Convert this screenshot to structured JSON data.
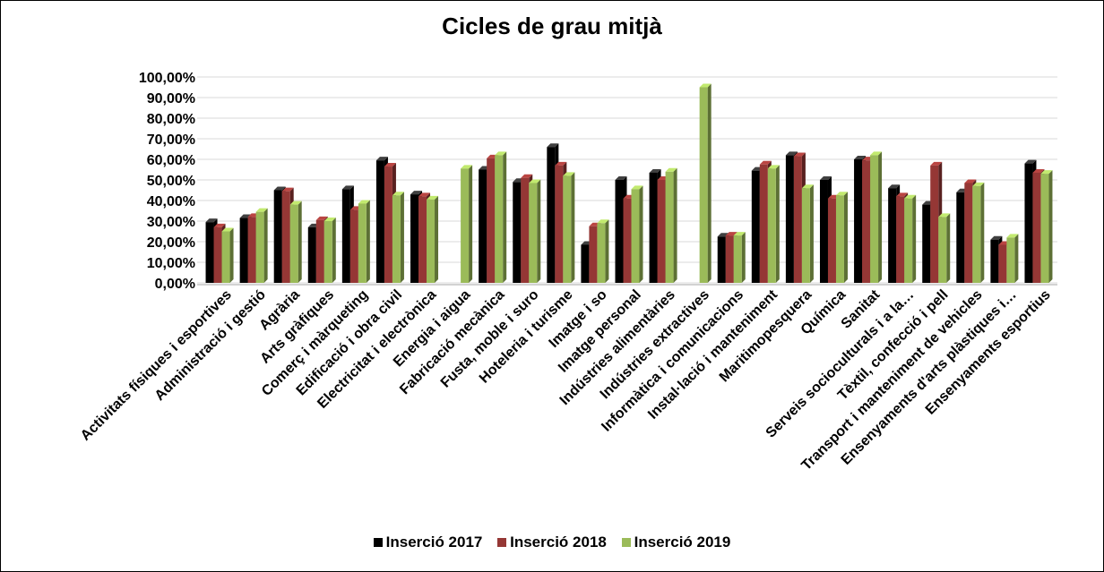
{
  "chart_data": {
    "type": "bar",
    "title": "Cicles de grau mitjà",
    "xlabel": "",
    "ylabel": "",
    "ylim": [
      0,
      100
    ],
    "y_ticks": [
      "0,00%",
      "10,00%",
      "20,00%",
      "30,00%",
      "40,00%",
      "50,00%",
      "60,00%",
      "70,00%",
      "80,00%",
      "90,00%",
      "100,00%"
    ],
    "grid": true,
    "legend_position": "bottom",
    "categories": [
      "Activitats físiques i esportives",
      "Administració i gestió",
      "Agrària",
      "Arts gràfiques",
      "Comerç i màrqueting",
      "Edificació i obra civil",
      "Electricitat i electrònica",
      "Energia i aigua",
      "Fabricació mecànica",
      "Fusta, moble i suro",
      "Hoteleria i turisme",
      "Imatge i so",
      "Imatge personal",
      "Indústries alimentàries",
      "Indústries extractives",
      "Informàtica i comunicacions",
      "Instal·lació i manteniment",
      "Maritimopesquera",
      "Química",
      "Sanitat",
      "Serveis socioculturals i a la…",
      "Tèxtil, confecció i pell",
      "Transport i manteniment de vehicles",
      "Ensenyaments d'arts plàstiques i…",
      "Ensenyaments esportius"
    ],
    "series": [
      {
        "name": "Inserció 2017",
        "color": "#000000",
        "values": [
          29.5,
          31.5,
          45,
          27,
          45.5,
          59.5,
          43,
          null,
          55,
          49,
          66,
          18.5,
          50,
          53.5,
          null,
          22.5,
          54.5,
          62,
          50,
          60,
          46,
          38,
          44,
          21,
          58
        ]
      },
      {
        "name": "Inserció 2018",
        "color": "#953735",
        "values": [
          27,
          32,
          44.5,
          30.5,
          35.5,
          56.5,
          42,
          null,
          60.5,
          51,
          57,
          27.5,
          41,
          50,
          null,
          23,
          57.5,
          61.5,
          41,
          59.5,
          42,
          57,
          48.5,
          18.5,
          53.5
        ]
      },
      {
        "name": "Inserció 2019",
        "color": "#9BBB59",
        "values": [
          25,
          34.5,
          38,
          30,
          38.5,
          42.5,
          40.5,
          55.5,
          62,
          48.5,
          52,
          29,
          45.5,
          54,
          95,
          23,
          55.5,
          46,
          42.5,
          62,
          41,
          32,
          47,
          22,
          53
        ]
      }
    ]
  }
}
